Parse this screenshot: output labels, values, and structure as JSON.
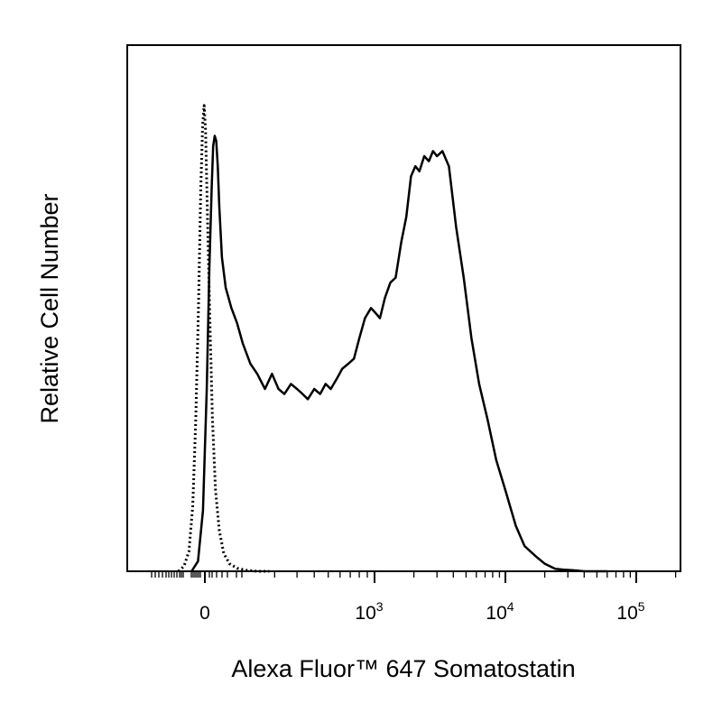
{
  "chart_data": {
    "type": "line",
    "xlabel": "Alexa Fluor™ 647 Somatostatin",
    "ylabel": "Relative Cell Number",
    "x_scale": "biexponential",
    "xlim": [
      -200,
      250000
    ],
    "ylim": [
      0,
      1
    ],
    "grid": false,
    "legend": "none",
    "x_ticks": [
      {
        "base": "0",
        "exp": ""
      },
      {
        "base": "10",
        "exp": "3"
      },
      {
        "base": "10",
        "exp": "4"
      },
      {
        "base": "10",
        "exp": "5"
      }
    ],
    "series": [
      {
        "style": "solid",
        "color": "#000000",
        "x": [
          -35,
          -18,
          -5,
          5,
          12,
          18,
          22,
          26,
          30,
          34,
          38,
          45,
          55,
          70,
          85,
          100,
          120,
          140,
          165,
          190,
          215,
          240,
          270,
          300,
          330,
          360,
          400,
          440,
          480,
          520,
          570,
          620,
          680,
          740,
          800,
          870,
          950,
          1020,
          1100,
          1200,
          1320,
          1450,
          1600,
          1750,
          1900,
          2050,
          2200,
          2400,
          2600,
          2800,
          3000,
          3300,
          3700,
          4200,
          4800,
          5500,
          6300,
          7300,
          8500,
          10000,
          12000,
          14000,
          17000,
          20000,
          24000,
          28000,
          33000,
          40000,
          60000
        ],
        "y": [
          0.0,
          0.02,
          0.12,
          0.36,
          0.6,
          0.76,
          0.84,
          0.86,
          0.85,
          0.8,
          0.72,
          0.62,
          0.56,
          0.52,
          0.49,
          0.45,
          0.41,
          0.39,
          0.36,
          0.39,
          0.36,
          0.35,
          0.37,
          0.36,
          0.35,
          0.34,
          0.36,
          0.35,
          0.37,
          0.36,
          0.38,
          0.4,
          0.41,
          0.42,
          0.46,
          0.5,
          0.52,
          0.51,
          0.5,
          0.54,
          0.57,
          0.58,
          0.65,
          0.7,
          0.78,
          0.8,
          0.79,
          0.82,
          0.81,
          0.83,
          0.82,
          0.83,
          0.8,
          0.68,
          0.58,
          0.46,
          0.37,
          0.3,
          0.22,
          0.16,
          0.09,
          0.05,
          0.03,
          0.015,
          0.005,
          0.003,
          0.002,
          0.0,
          0.0
        ]
      },
      {
        "style": "dotted",
        "color": "#000000",
        "x": [
          -70,
          -55,
          -42,
          -32,
          -24,
          -17,
          -11,
          -6,
          -2,
          2,
          7,
          13,
          20,
          28,
          38,
          50,
          65,
          85,
          110,
          140,
          180
        ],
        "y": [
          0.0,
          0.01,
          0.04,
          0.13,
          0.3,
          0.52,
          0.75,
          0.88,
          0.92,
          0.87,
          0.7,
          0.5,
          0.3,
          0.16,
          0.08,
          0.035,
          0.015,
          0.006,
          0.002,
          0.0,
          0.0
        ]
      }
    ]
  }
}
